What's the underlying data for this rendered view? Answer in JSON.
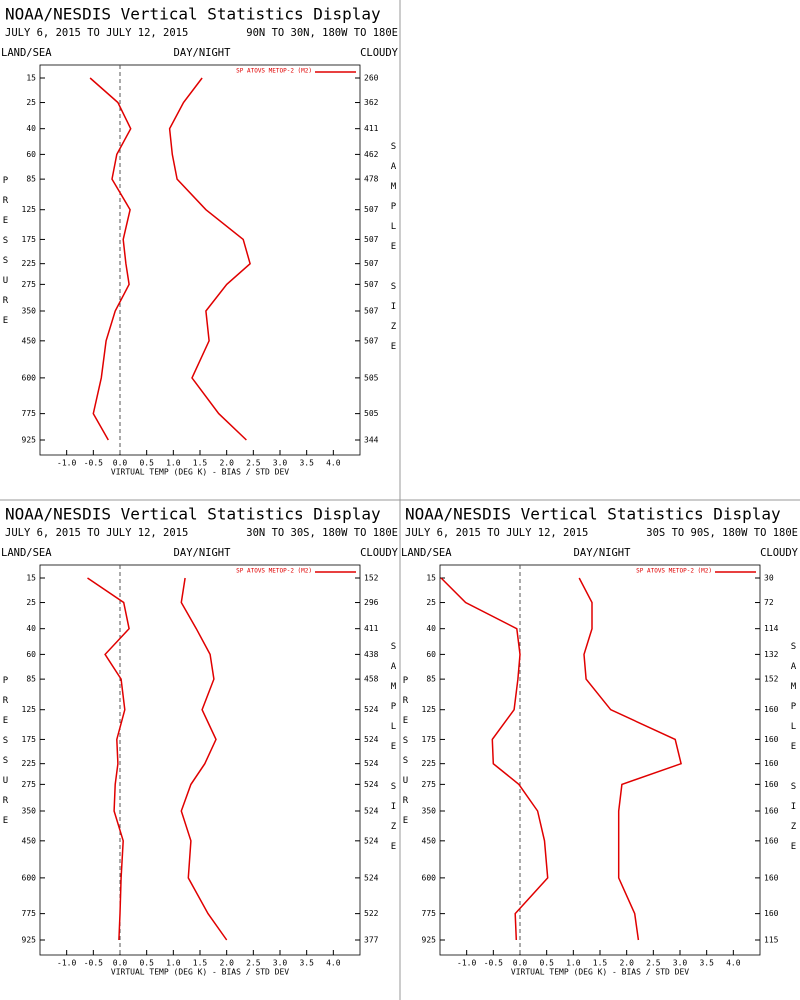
{
  "chart_data": [
    {
      "type": "profile",
      "title": "NOAA/NESDIS Vertical Statistics Display",
      "subtitle": "JULY 6, 2015 TO JULY 12, 2015",
      "region": "90N TO 30N, 180W TO 180E",
      "header_labels": [
        "LAND/SEA",
        "DAY/NIGHT",
        "CLOUDY"
      ],
      "y_label": "PRESSURE",
      "y2_label": "SAMPLE SIZE",
      "x_label": "VIRTUAL TEMP (DEG K) - BIAS / STD DEV",
      "xlim": [
        -1.5,
        4.5
      ],
      "xticks": [
        {
          "value": -1,
          "label": "-1.0"
        },
        {
          "value": -0.5,
          "label": "-0.5"
        },
        {
          "value": 0,
          "label": "0.0"
        },
        {
          "value": 0.5,
          "label": "0.5"
        },
        {
          "value": 1,
          "label": "1.0"
        },
        {
          "value": 1.5,
          "label": "1.5"
        },
        {
          "value": 2,
          "label": "2.0"
        },
        {
          "value": 2.5,
          "label": "2.5"
        },
        {
          "value": 3,
          "label": "3.0"
        },
        {
          "value": 3.5,
          "label": "3.5"
        },
        {
          "value": 4,
          "label": "4.0"
        }
      ],
      "ylim": [
        15,
        925
      ],
      "yticks": [
        15,
        25,
        40,
        60,
        85,
        125,
        175,
        225,
        275,
        350,
        450,
        600,
        775,
        925
      ],
      "sample_size": [
        260,
        362,
        411,
        462,
        478,
        507,
        507,
        507,
        507,
        507,
        507,
        505,
        505,
        344
      ],
      "series": [
        {
          "name": "SP ATOVS METOP-2 (M2)",
          "color": "#e00000",
          "bias": [
            -0.56,
            -0.04,
            0.2,
            -0.06,
            -0.15,
            0.19,
            0.06,
            0.11,
            0.17,
            -0.09,
            -0.26,
            -0.35,
            -0.5,
            -0.22
          ],
          "std_dev": [
            1.54,
            1.19,
            0.93,
            0.98,
            1.07,
            1.61,
            2.31,
            2.44,
            2.0,
            1.61,
            1.67,
            1.35,
            1.85,
            2.37
          ]
        }
      ]
    },
    {
      "type": "profile",
      "title": "NOAA/NESDIS Vertical Statistics Display",
      "subtitle": "JULY 6, 2015 TO JULY 12, 2015",
      "region": "30N TO 30S, 180W TO 180E",
      "header_labels": [
        "LAND/SEA",
        "DAY/NIGHT",
        "CLOUDY"
      ],
      "y_label": "PRESSURE",
      "y2_label": "SAMPLE SIZE",
      "x_label": "VIRTUAL TEMP (DEG K) - BIAS / STD DEV",
      "xlim": [
        -1.5,
        4.5
      ],
      "xticks": [
        {
          "value": -1,
          "label": "-1.0"
        },
        {
          "value": -0.5,
          "label": "-0.5"
        },
        {
          "value": 0,
          "label": "0.0"
        },
        {
          "value": 0.5,
          "label": "0.5"
        },
        {
          "value": 1,
          "label": "1.0"
        },
        {
          "value": 1.5,
          "label": "1.5"
        },
        {
          "value": 2,
          "label": "2.0"
        },
        {
          "value": 2.5,
          "label": "2.5"
        },
        {
          "value": 3,
          "label": "3.0"
        },
        {
          "value": 3.5,
          "label": "3.5"
        },
        {
          "value": 4,
          "label": "4.0"
        }
      ],
      "ylim": [
        15,
        925
      ],
      "yticks": [
        15,
        25,
        40,
        60,
        85,
        125,
        175,
        225,
        275,
        350,
        450,
        600,
        775,
        925
      ],
      "sample_size": [
        152,
        296,
        411,
        438,
        458,
        524,
        524,
        524,
        524,
        524,
        524,
        524,
        522,
        377
      ],
      "series": [
        {
          "name": "SP ATOVS METOP-2 (M2)",
          "color": "#e00000",
          "bias": [
            -0.61,
            0.07,
            0.17,
            -0.28,
            0.02,
            0.09,
            -0.06,
            -0.04,
            -0.09,
            -0.11,
            0.06,
            0.02,
            0,
            -0.02
          ],
          "std_dev": [
            1.22,
            1.15,
            1.43,
            1.69,
            1.76,
            1.54,
            1.8,
            1.59,
            1.33,
            1.15,
            1.33,
            1.28,
            1.65,
            2.0
          ]
        }
      ]
    },
    {
      "type": "profile",
      "title": "NOAA/NESDIS Vertical Statistics Display",
      "subtitle": "JULY 6, 2015 TO JULY 12, 2015",
      "region": "30S TO 90S, 180W TO 180E",
      "header_labels": [
        "LAND/SEA",
        "DAY/NIGHT",
        "CLOUDY"
      ],
      "y_label": "PRESSURE",
      "y2_label": "SAMPLE SIZE",
      "x_label": "VIRTUAL TEMP (DEG K) - BIAS / STD DEV",
      "xlim": [
        -1.5,
        4.5
      ],
      "xticks": [
        {
          "value": -1,
          "label": "-1.0"
        },
        {
          "value": -0.5,
          "label": "-0.5"
        },
        {
          "value": 0,
          "label": "0.0"
        },
        {
          "value": 0.5,
          "label": "0.5"
        },
        {
          "value": 1,
          "label": "1.0"
        },
        {
          "value": 1.5,
          "label": "1.5"
        },
        {
          "value": 2,
          "label": "2.0"
        },
        {
          "value": 2.5,
          "label": "2.5"
        },
        {
          "value": 3,
          "label": "3.0"
        },
        {
          "value": 3.5,
          "label": "3.5"
        },
        {
          "value": 4,
          "label": "4.0"
        }
      ],
      "ylim": [
        15,
        925
      ],
      "yticks": [
        15,
        25,
        40,
        60,
        85,
        125,
        175,
        225,
        275,
        350,
        450,
        600,
        775,
        925
      ],
      "sample_size": [
        30,
        72,
        114,
        132,
        152,
        160,
        160,
        160,
        160,
        160,
        160,
        160,
        160,
        115
      ],
      "series": [
        {
          "name": "SP ATOVS METOP-2 (M2)",
          "color": "#e00000",
          "bias": [
            -1.48,
            -1.02,
            -0.06,
            0,
            -0.04,
            -0.11,
            -0.52,
            -0.5,
            -0.02,
            0.33,
            0.46,
            0.52,
            -0.09,
            -0.07
          ],
          "std_dev": [
            1.11,
            1.35,
            1.35,
            1.2,
            1.24,
            1.7,
            2.91,
            3.02,
            1.91,
            1.85,
            1.85,
            1.85,
            2.15,
            2.22
          ]
        }
      ]
    }
  ]
}
